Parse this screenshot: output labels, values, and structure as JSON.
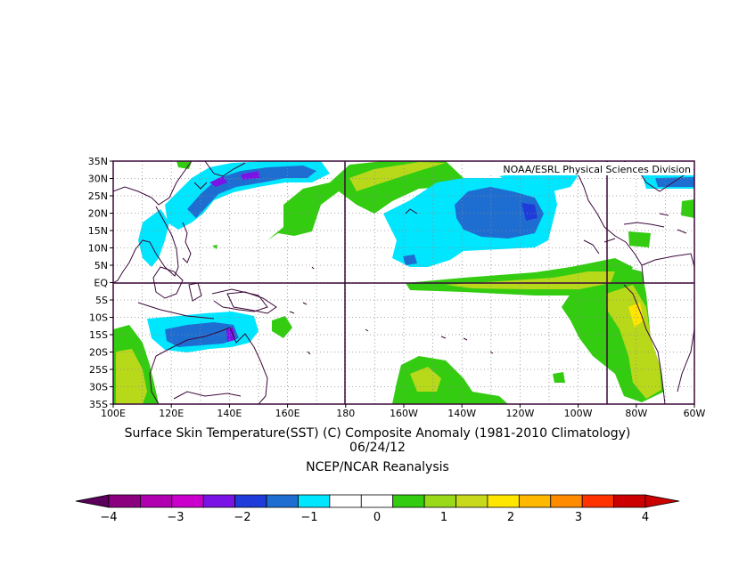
{
  "map": {
    "credit": "NOAA/ESRL Physical Sciences Division",
    "title": "Surface Skin Temperature(SST) (C) Composite Anomaly (1981-2010 Climatology)",
    "date": "06/24/12",
    "source": "NCEP/NCAR Reanalysis",
    "lat_labels": [
      "35N",
      "30N",
      "25N",
      "20N",
      "15N",
      "10N",
      "5N",
      "EQ",
      "5S",
      "10S",
      "15S",
      "20S",
      "25S",
      "30S",
      "35S"
    ],
    "lon_labels": [
      "100E",
      "120E",
      "140E",
      "160E",
      "180",
      "160W",
      "140W",
      "120W",
      "100W",
      "80W",
      "60W"
    ],
    "lat_range": [
      -35,
      35
    ],
    "lon_range_east": [
      100,
      300
    ],
    "grid": "dotted",
    "reference_lines": [
      "EQ",
      "180",
      "90W"
    ]
  },
  "colorbar": {
    "tick_labels": [
      "-4",
      "-3",
      "-2",
      "-1",
      "0",
      "1",
      "2",
      "3",
      "4"
    ],
    "colors": [
      "#8b007f",
      "#b000b0",
      "#cc00cc",
      "#7a14e6",
      "#1f3cdb",
      "#1e6ed2",
      "#00e6ff",
      "#ffffff",
      "#ffffff",
      "#33cc11",
      "#99d91a",
      "#c8d81a",
      "#ffe600",
      "#ffb800",
      "#ff8c00",
      "#ff3300",
      "#cc0000"
    ],
    "low_end_color": "#5a005a",
    "high_end_color": "#cc0000"
  },
  "colors": {
    "frame": "#3a0838",
    "coast": "#3a0838",
    "cyan": "#00e6ff",
    "blue": "#1e6ed2",
    "blue_dark": "#1f3cdb",
    "purple": "#7a14e6",
    "green": "#33cc11",
    "yellowgreen": "#b8d81a"
  }
}
